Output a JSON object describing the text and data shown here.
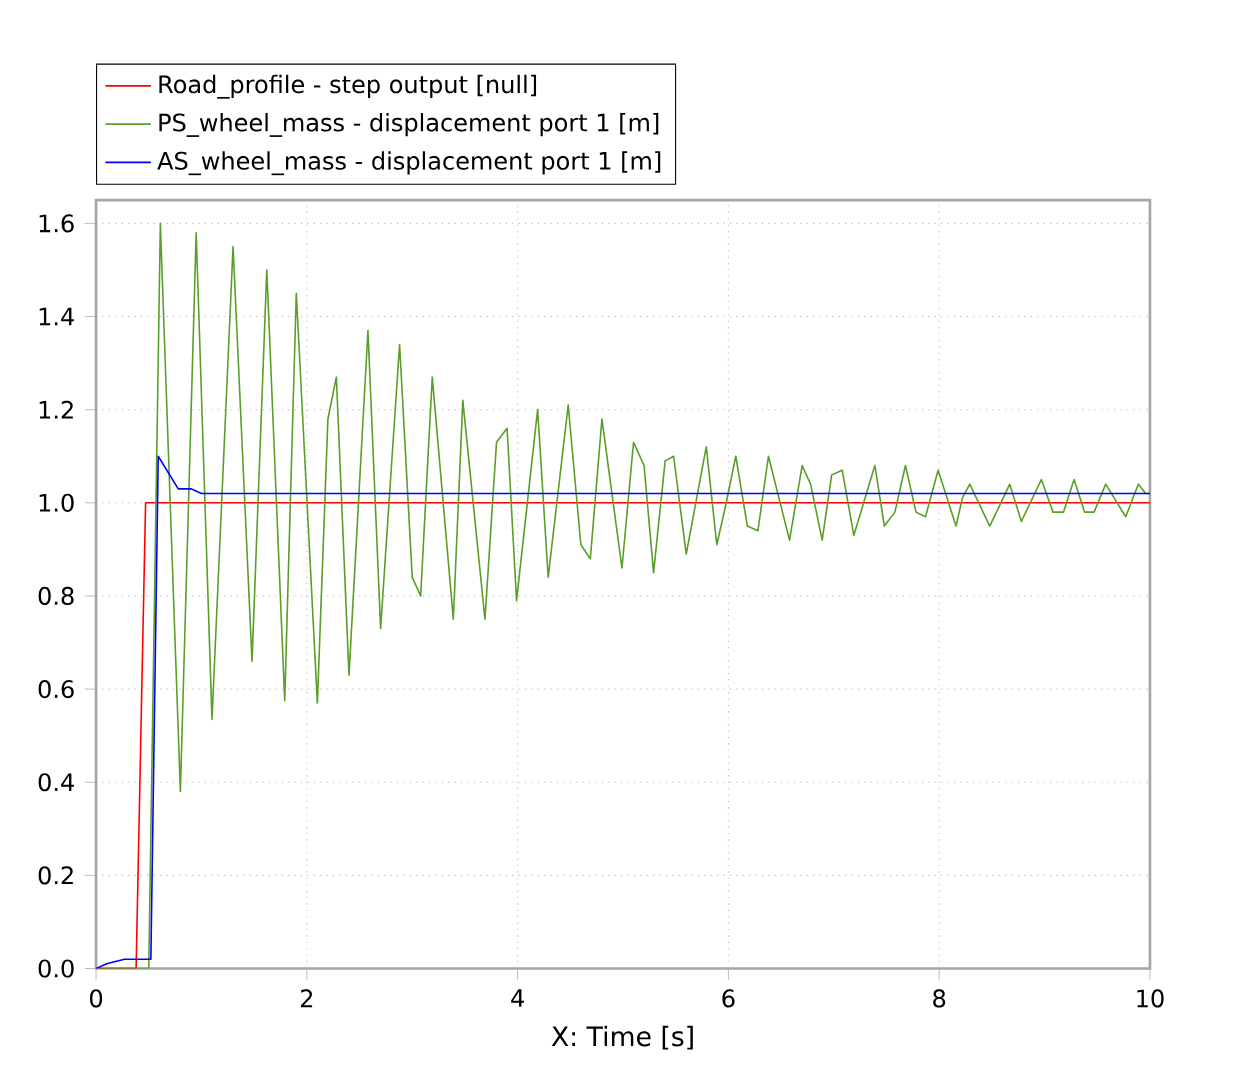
{
  "chart_data": {
    "type": "line",
    "xlabel": "X: Time [s]",
    "xlim": [
      0,
      10
    ],
    "ylim": [
      0,
      1.65
    ],
    "xticks": [
      0,
      2,
      4,
      6,
      8,
      10
    ],
    "yticks": [
      {
        "value": 0,
        "label": "0.0"
      },
      {
        "value": 0.2,
        "label": "0.2"
      },
      {
        "value": 0.4,
        "label": "0.4"
      },
      {
        "value": 0.6,
        "label": "0.6"
      },
      {
        "value": 0.8,
        "label": "0.8"
      },
      {
        "value": 1.0,
        "label": "1.0"
      },
      {
        "value": 1.2,
        "label": "1.2"
      },
      {
        "value": 1.4,
        "label": "1.4"
      },
      {
        "value": 1.6,
        "label": "1.6"
      }
    ],
    "grid": true,
    "legend": "top left",
    "series": [
      {
        "name": "Road_profile - step output [null]",
        "color": "#ff0000",
        "x": [
          0,
          0.38,
          0.47,
          10
        ],
        "values": [
          0,
          0,
          1.0,
          1.0
        ]
      },
      {
        "name": "PS_wheel_mass - displacement port 1 [m]",
        "color": "#5a9e28",
        "x": [
          0,
          0.5,
          0.61,
          0.8,
          0.95,
          1.1,
          1.3,
          1.48,
          1.62,
          1.79,
          1.9,
          2.1,
          2.2,
          2.28,
          2.4,
          2.58,
          2.7,
          2.88,
          3.0,
          3.08,
          3.19,
          3.39,
          3.48,
          3.69,
          3.8,
          3.9,
          3.99,
          4.19,
          4.29,
          4.48,
          4.6,
          4.69,
          4.8,
          4.99,
          5.1,
          5.2,
          5.29,
          5.4,
          5.48,
          5.6,
          5.79,
          5.89,
          5.97,
          6.07,
          6.18,
          6.28,
          6.38,
          6.58,
          6.7,
          6.78,
          6.89,
          6.98,
          7.08,
          7.19,
          7.39,
          7.48,
          7.58,
          7.68,
          7.78,
          7.87,
          7.99,
          8.16,
          8.22,
          8.29,
          8.48,
          8.67,
          8.78,
          8.97,
          9.08,
          9.18,
          9.28,
          9.38,
          9.47,
          9.58,
          9.77,
          9.89,
          9.96,
          10
        ],
        "values": [
          0,
          0,
          1.6,
          0.38,
          1.58,
          0.535,
          1.55,
          0.66,
          1.5,
          0.575,
          1.45,
          0.57,
          1.18,
          1.27,
          0.63,
          1.37,
          0.73,
          1.34,
          0.84,
          0.8,
          1.27,
          0.75,
          1.22,
          0.75,
          1.13,
          1.16,
          0.79,
          1.2,
          0.84,
          1.21,
          0.91,
          0.88,
          1.18,
          0.86,
          1.13,
          1.08,
          0.85,
          1.09,
          1.1,
          0.89,
          1.12,
          0.91,
          0.99,
          1.1,
          0.95,
          0.94,
          1.1,
          0.92,
          1.08,
          1.04,
          0.92,
          1.06,
          1.07,
          0.93,
          1.08,
          0.95,
          0.98,
          1.08,
          0.98,
          0.97,
          1.07,
          0.95,
          1.01,
          1.04,
          0.95,
          1.04,
          0.96,
          1.05,
          0.98,
          0.98,
          1.05,
          0.98,
          0.98,
          1.04,
          0.97,
          1.04,
          1.02,
          1.02
        ]
      },
      {
        "name": "AS_wheel_mass - displacement port 1 [m]",
        "color": "#0000ff",
        "x": [
          0,
          0.1,
          0.27,
          0.52,
          0.59,
          0.78,
          0.9,
          1.0,
          10
        ],
        "values": [
          0,
          0.01,
          0.02,
          0.02,
          1.1,
          1.03,
          1.03,
          1.02,
          1.02
        ]
      }
    ]
  }
}
